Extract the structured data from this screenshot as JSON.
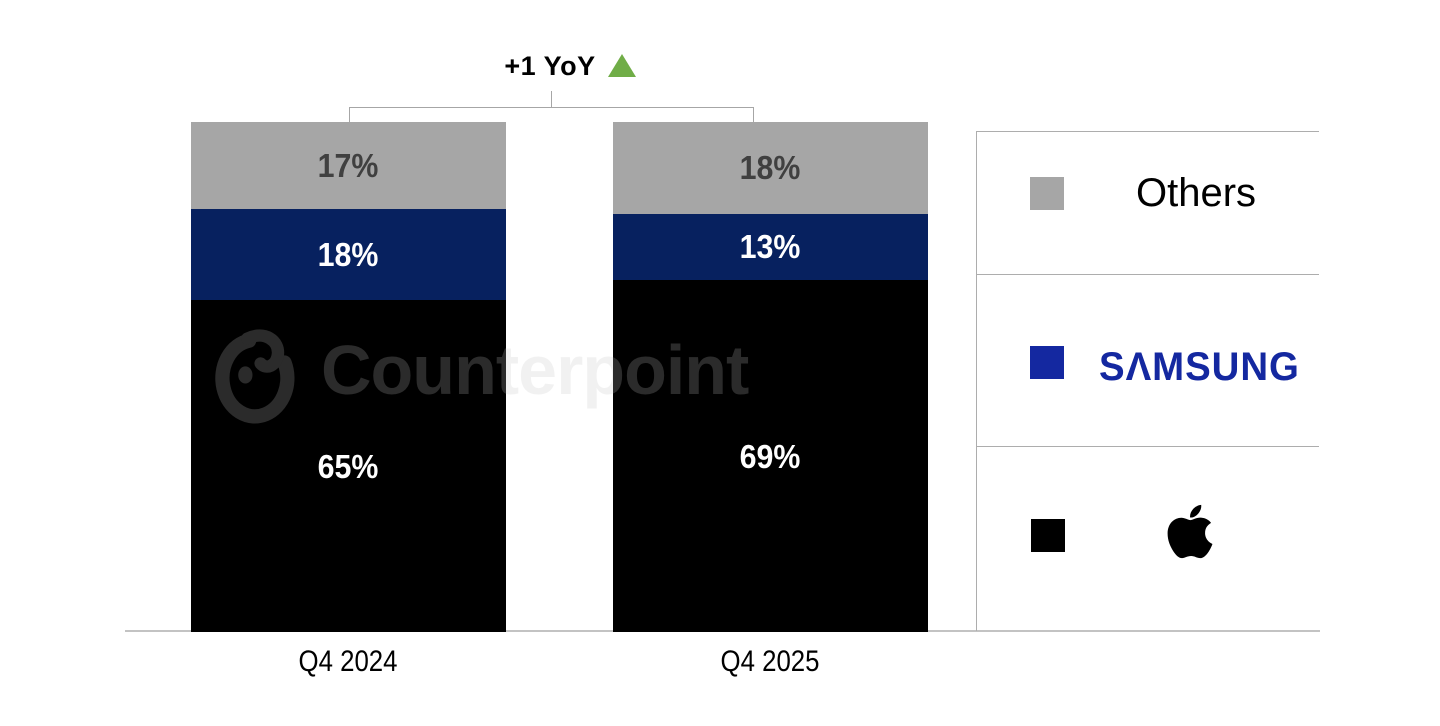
{
  "chart_data": {
    "type": "bar",
    "subtype": "stacked-100",
    "categories": [
      "Q4 2024",
      "Q4 2025"
    ],
    "series": [
      {
        "name": "Others",
        "color": "#a6a6a6",
        "label_color": "#404040",
        "values": [
          17,
          18
        ]
      },
      {
        "name": "Samsung",
        "color": "#07215f",
        "label_color": "#ffffff",
        "values": [
          18,
          13
        ]
      },
      {
        "name": "Apple",
        "color": "#000000",
        "label_color": "#ffffff",
        "values": [
          65,
          69
        ]
      }
    ],
    "stack_order_top_to_bottom": [
      "Others",
      "Samsung",
      "Apple"
    ],
    "value_suffix": "%",
    "ylim": [
      0,
      100
    ],
    "grid": false,
    "legend_position": "right",
    "annotation": {
      "text": "+1 YoY",
      "symbol": "up-triangle",
      "symbol_color": "#70ad47",
      "applies_to": "Others"
    }
  },
  "legend": {
    "items": [
      {
        "label": "Others",
        "swatch_color": "#a6a6a6",
        "type": "text"
      },
      {
        "label": "SAMSUNG",
        "wordmark_display": "SΛMSUNG",
        "swatch_color": "#1428a0",
        "wordmark_color": "#1428a0",
        "type": "wordmark"
      },
      {
        "label": "Apple",
        "swatch_color": "#000000",
        "type": "icon",
        "icon": "apple-logo"
      }
    ]
  },
  "watermark": {
    "text": "Counterpoint",
    "logo": "counterpoint-logo"
  }
}
